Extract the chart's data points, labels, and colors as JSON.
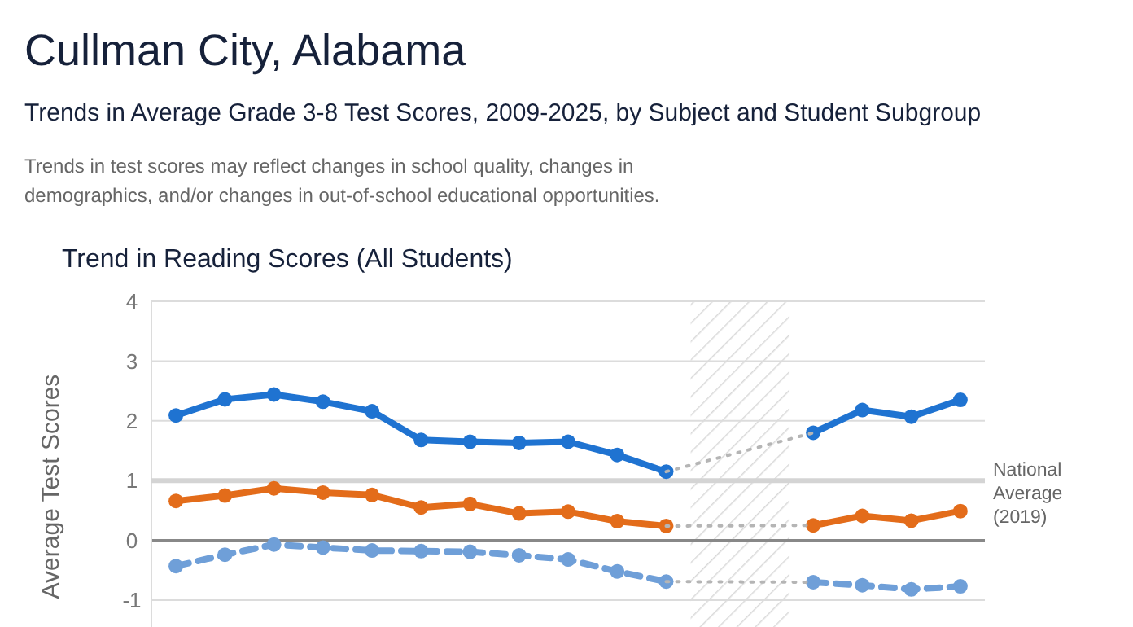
{
  "chart_data": {
    "type": "line",
    "title": "Cullman City, Alabama",
    "subtitle": "Trends in Average Grade 3-8 Test Scores, 2009-2025, by Subject and Student Subgroup",
    "annotations": [
      "Trends in test scores may reflect changes in school quality, changes in demographics, and/or changes in out-of-school educational opportunities.",
      "Trend in Reading Scores (All Students)"
    ],
    "ylabel": "Average Test Scores",
    "categories": [
      null,
      null,
      null,
      null,
      null,
      null,
      null,
      null,
      null,
      null,
      null,
      null,
      null,
      null,
      null,
      null,
      null
    ],
    "series": [
      {
        "color": "#1f73d1",
        "marker": "circle",
        "line_style": "solid",
        "values": [
          2.09,
          2.36,
          2.44,
          2.32,
          2.16,
          1.68,
          1.65,
          1.63,
          1.65,
          1.43,
          1.15,
          null,
          null,
          null,
          null,
          null,
          null
        ]
      },
      {
        "color": "#1f73d1",
        "marker": "circle",
        "line_style": "solid",
        "values": [
          null,
          null,
          null,
          null,
          null,
          null,
          null,
          null,
          null,
          null,
          null,
          null,
          null,
          1.8,
          2.18,
          2.07,
          2.35
        ]
      },
      {
        "color": "#e36c1a",
        "marker": "circle",
        "line_style": "solid",
        "values": [
          0.66,
          0.75,
          0.87,
          0.8,
          0.76,
          0.55,
          0.61,
          0.45,
          0.48,
          0.32,
          0.24,
          null,
          null,
          null,
          null,
          null,
          null
        ]
      },
      {
        "color": "#e36c1a",
        "marker": "circle",
        "line_style": "solid",
        "values": [
          null,
          null,
          null,
          null,
          null,
          null,
          null,
          null,
          null,
          null,
          null,
          null,
          null,
          0.25,
          0.41,
          0.33,
          0.49
        ]
      },
      {
        "color": "#6f9fd8",
        "marker": "circle",
        "line_style": "dashed",
        "values": [
          -0.43,
          -0.24,
          -0.07,
          -0.12,
          -0.17,
          -0.18,
          -0.19,
          -0.25,
          -0.32,
          -0.52,
          -0.69,
          null,
          null,
          null,
          null,
          null,
          null
        ]
      },
      {
        "color": "#6f9fd8",
        "marker": "circle",
        "line_style": "dashed",
        "values": [
          null,
          null,
          null,
          null,
          null,
          null,
          null,
          null,
          null,
          null,
          null,
          null,
          null,
          -0.7,
          -0.75,
          -0.82,
          -0.77
        ]
      },
      {
        "color": "#b5b5b5",
        "marker": "none",
        "line_style": "dotted",
        "values": [
          null,
          null,
          null,
          null,
          null,
          null,
          null,
          null,
          null,
          null,
          1.15,
          null,
          null,
          1.8,
          null,
          null,
          null
        ]
      },
      {
        "color": "#b5b5b5",
        "marker": "none",
        "line_style": "dotted",
        "values": [
          null,
          null,
          null,
          null,
          null,
          null,
          null,
          null,
          null,
          null,
          0.24,
          null,
          null,
          0.25,
          null,
          null,
          null
        ]
      },
      {
        "color": "#b5b5b5",
        "marker": "none",
        "line_style": "dotted",
        "values": [
          null,
          null,
          null,
          null,
          null,
          null,
          null,
          null,
          null,
          null,
          -0.69,
          null,
          null,
          -0.7,
          null,
          null,
          null
        ]
      }
    ],
    "ylim": [
      -1.4,
      4
    ],
    "yticks": [
      -1,
      0,
      1,
      2,
      3,
      4
    ],
    "grid": "y",
    "tick_labels": "y",
    "ref_lines": [
      {
        "axis": "y",
        "value": 1,
        "label": "National Average (2019)",
        "color": "#d4d4d4"
      }
    ]
  }
}
